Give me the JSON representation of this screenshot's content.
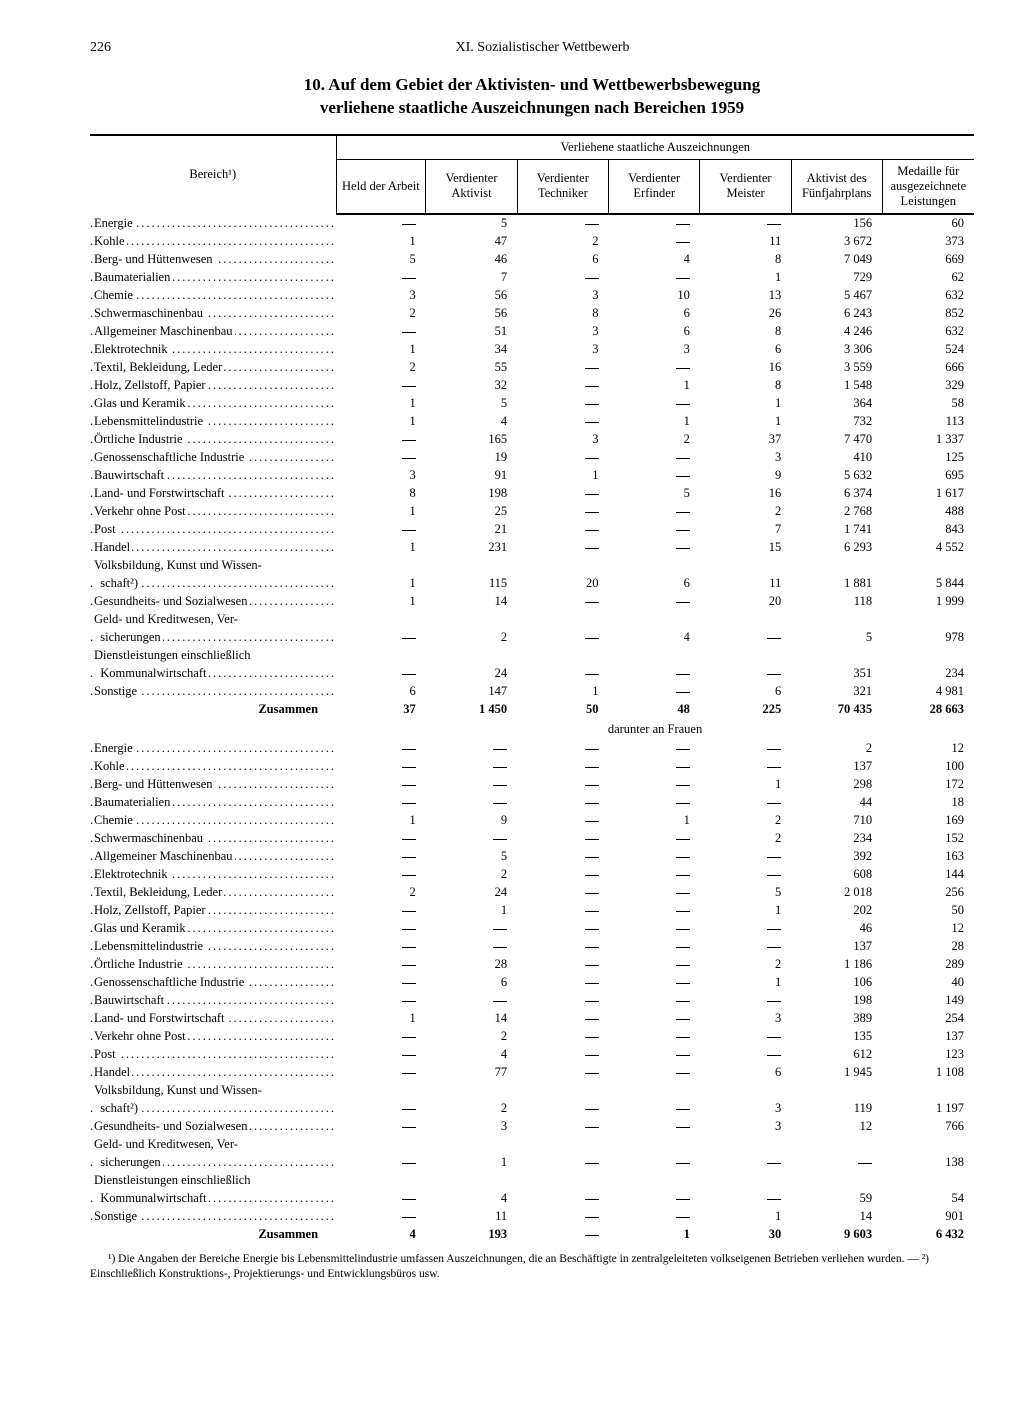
{
  "page_number": "226",
  "chapter": "XI. Sozialistischer Wettbewerb",
  "title_line1": "10. Auf dem Gebiet der Aktivisten- und Wettbewerbsbewegung",
  "title_line2": "verliehene staatliche Auszeichnungen nach Bereichen 1959",
  "group_header": "Verliehene staatliche Auszeichnungen",
  "col_bereich": "Bereich¹)",
  "columns": [
    "Held der Arbeit",
    "Verdienter Aktivist",
    "Verdienter Techniker",
    "Verdienter Erfinder",
    "Verdienter Meister",
    "Aktivist des Fünf­jahrplans",
    "Medaille für aus­gezeichnete Leistungen"
  ],
  "section1": [
    {
      "label": "Energie",
      "v": [
        "—",
        "5",
        "—",
        "—",
        "—",
        "156",
        "60"
      ]
    },
    {
      "label": "Kohle",
      "v": [
        "1",
        "47",
        "2",
        "—",
        "11",
        "3 672",
        "373"
      ]
    },
    {
      "label": "Berg- und Hüttenwesen",
      "v": [
        "5",
        "46",
        "6",
        "4",
        "8",
        "7 049",
        "669"
      ]
    },
    {
      "label": "Baumaterialien",
      "v": [
        "—",
        "7",
        "—",
        "—",
        "1",
        "729",
        "62"
      ]
    },
    {
      "label": "Chemie",
      "v": [
        "3",
        "56",
        "3",
        "10",
        "13",
        "5 467",
        "632"
      ]
    },
    {
      "label": "Schwermaschinenbau",
      "v": [
        "2",
        "56",
        "8",
        "6",
        "26",
        "6 243",
        "852"
      ]
    },
    {
      "label": "Allgemeiner Maschinenbau",
      "v": [
        "—",
        "51",
        "3",
        "6",
        "8",
        "4 246",
        "632"
      ]
    },
    {
      "label": "Elektrotechnik",
      "v": [
        "1",
        "34",
        "3",
        "3",
        "6",
        "3 306",
        "524"
      ]
    },
    {
      "label": "Textil, Bekleidung, Leder",
      "v": [
        "2",
        "55",
        "—",
        "—",
        "16",
        "3 559",
        "666"
      ]
    },
    {
      "label": "Holz, Zellstoff, Papier",
      "v": [
        "—",
        "32",
        "—",
        "1",
        "8",
        "1 548",
        "329"
      ]
    },
    {
      "label": "Glas und Keramik",
      "v": [
        "1",
        "5",
        "—",
        "—",
        "1",
        "364",
        "58"
      ]
    },
    {
      "label": "Lebensmittelindustrie",
      "v": [
        "1",
        "4",
        "—",
        "1",
        "1",
        "732",
        "113"
      ]
    },
    {
      "label": "Örtliche Industrie",
      "v": [
        "—",
        "165",
        "3",
        "2",
        "37",
        "7 470",
        "1 337"
      ]
    },
    {
      "label": "Genossenschaftliche Industrie",
      "v": [
        "—",
        "19",
        "—",
        "—",
        "3",
        "410",
        "125"
      ]
    },
    {
      "label": "Bauwirtschaft",
      "v": [
        "3",
        "91",
        "1",
        "—",
        "9",
        "5 632",
        "695"
      ]
    },
    {
      "label": "Land- und Forstwirtschaft",
      "v": [
        "8",
        "198",
        "—",
        "5",
        "16",
        "6 374",
        "1 617"
      ]
    },
    {
      "label": "Verkehr ohne Post",
      "v": [
        "1",
        "25",
        "—",
        "—",
        "2",
        "2 768",
        "488"
      ]
    },
    {
      "label": "Post",
      "v": [
        "—",
        "21",
        "—",
        "—",
        "7",
        "1 741",
        "843"
      ]
    },
    {
      "label": "Handel",
      "v": [
        "1",
        "231",
        "—",
        "—",
        "15",
        "6 293",
        "4 552"
      ]
    },
    {
      "label": "Volksbildung, Kunst und Wissen-",
      "v": [
        "",
        "",
        "",
        "",
        "",
        "",
        ""
      ],
      "nodots": true
    },
    {
      "label": "  schaft²)",
      "v": [
        "1",
        "115",
        "20",
        "6",
        "11",
        "1 881",
        "5 844"
      ]
    },
    {
      "label": "Gesundheits- und Sozialwesen",
      "v": [
        "1",
        "14",
        "—",
        "—",
        "20",
        "118",
        "1 999"
      ]
    },
    {
      "label": "Geld- und Kreditwesen, Ver-",
      "v": [
        "",
        "",
        "",
        "",
        "",
        "",
        ""
      ],
      "nodots": true
    },
    {
      "label": "  sicherungen",
      "v": [
        "—",
        "2",
        "—",
        "4",
        "—",
        "5",
        "978"
      ]
    },
    {
      "label": "Dienstleistungen einschließlich",
      "v": [
        "",
        "",
        "",
        "",
        "",
        "",
        ""
      ],
      "nodots": true
    },
    {
      "label": "  Kommunalwirtschaft",
      "v": [
        "—",
        "24",
        "—",
        "—",
        "—",
        "351",
        "234"
      ]
    },
    {
      "label": "Sonstige",
      "v": [
        "6",
        "147",
        "1",
        "—",
        "6",
        "321",
        "4 981"
      ]
    }
  ],
  "sum1": {
    "label": "Zusammen",
    "v": [
      "37",
      "1 450",
      "50",
      "48",
      "225",
      "70 435",
      "28 663"
    ]
  },
  "sub_header": "darunter an Frauen",
  "section2": [
    {
      "label": "Energie",
      "v": [
        "—",
        "—",
        "—",
        "—",
        "—",
        "2",
        "12"
      ]
    },
    {
      "label": "Kohle",
      "v": [
        "—",
        "—",
        "—",
        "—",
        "—",
        "137",
        "100"
      ]
    },
    {
      "label": "Berg- und Hüttenwesen",
      "v": [
        "—",
        "—",
        "—",
        "—",
        "1",
        "298",
        "172"
      ]
    },
    {
      "label": "Baumaterialien",
      "v": [
        "—",
        "—",
        "—",
        "—",
        "—",
        "44",
        "18"
      ]
    },
    {
      "label": "Chemie",
      "v": [
        "1",
        "9",
        "—",
        "1",
        "2",
        "710",
        "169"
      ]
    },
    {
      "label": "Schwermaschinenbau",
      "v": [
        "—",
        "—",
        "—",
        "—",
        "2",
        "234",
        "152"
      ]
    },
    {
      "label": "Allgemeiner Maschinenbau",
      "v": [
        "—",
        "5",
        "—",
        "—",
        "—",
        "392",
        "163"
      ]
    },
    {
      "label": "Elektrotechnik",
      "v": [
        "—",
        "2",
        "—",
        "—",
        "—",
        "608",
        "144"
      ]
    },
    {
      "label": "Textil, Bekleidung, Leder",
      "v": [
        "2",
        "24",
        "—",
        "—",
        "5",
        "2 018",
        "256"
      ]
    },
    {
      "label": "Holz, Zellstoff, Papier",
      "v": [
        "—",
        "1",
        "—",
        "—",
        "1",
        "202",
        "50"
      ]
    },
    {
      "label": "Glas und Keramik",
      "v": [
        "—",
        "—",
        "—",
        "—",
        "—",
        "46",
        "12"
      ]
    },
    {
      "label": "Lebensmittelindustrie",
      "v": [
        "—",
        "—",
        "—",
        "—",
        "—",
        "137",
        "28"
      ]
    },
    {
      "label": "Örtliche Industrie",
      "v": [
        "—",
        "28",
        "—",
        "—",
        "2",
        "1 186",
        "289"
      ]
    },
    {
      "label": "Genossenschaftliche Industrie",
      "v": [
        "—",
        "6",
        "—",
        "—",
        "1",
        "106",
        "40"
      ]
    },
    {
      "label": "Bauwirtschaft",
      "v": [
        "—",
        "—",
        "—",
        "—",
        "—",
        "198",
        "149"
      ]
    },
    {
      "label": "Land- und Forstwirtschaft",
      "v": [
        "1",
        "14",
        "—",
        "—",
        "3",
        "389",
        "254"
      ]
    },
    {
      "label": "Verkehr ohne Post",
      "v": [
        "—",
        "2",
        "—",
        "—",
        "—",
        "135",
        "137"
      ]
    },
    {
      "label": "Post",
      "v": [
        "—",
        "4",
        "—",
        "—",
        "—",
        "612",
        "123"
      ]
    },
    {
      "label": "Handel",
      "v": [
        "—",
        "77",
        "—",
        "—",
        "6",
        "1 945",
        "1 108"
      ]
    },
    {
      "label": "Volksbildung, Kunst und Wissen-",
      "v": [
        "",
        "",
        "",
        "",
        "",
        "",
        ""
      ],
      "nodots": true
    },
    {
      "label": "  schaft²)",
      "v": [
        "—",
        "2",
        "—",
        "—",
        "3",
        "119",
        "1 197"
      ]
    },
    {
      "label": "Gesundheits- und Sozialwesen",
      "v": [
        "—",
        "3",
        "—",
        "—",
        "3",
        "12",
        "766"
      ]
    },
    {
      "label": "Geld- und Kreditwesen, Ver-",
      "v": [
        "",
        "",
        "",
        "",
        "",
        "",
        ""
      ],
      "nodots": true
    },
    {
      "label": "  sicherungen",
      "v": [
        "—",
        "1",
        "—",
        "—",
        "—",
        "—",
        "138"
      ]
    },
    {
      "label": "Dienstleistungen einschließlich",
      "v": [
        "",
        "",
        "",
        "",
        "",
        "",
        ""
      ],
      "nodots": true
    },
    {
      "label": "  Kommunalwirtschaft",
      "v": [
        "—",
        "4",
        "—",
        "—",
        "—",
        "59",
        "54"
      ]
    },
    {
      "label": "Sonstige",
      "v": [
        "—",
        "11",
        "—",
        "—",
        "1",
        "14",
        "901"
      ]
    }
  ],
  "sum2": {
    "label": "Zusammen",
    "v": [
      "4",
      "193",
      "—",
      "1",
      "30",
      "9 603",
      "6 432"
    ]
  },
  "footnote": "¹) Die Angaben der Bereiche Energie bis Lebensmittelindustrie umfassen Auszeichnungen, die an Beschäftigte in zentralgeleiteten volkseigenen Betrieben verliehen wurden. — ²) Einschließlich Konstruktions-, Projektierungs- und Entwicklungsbüros usw."
}
